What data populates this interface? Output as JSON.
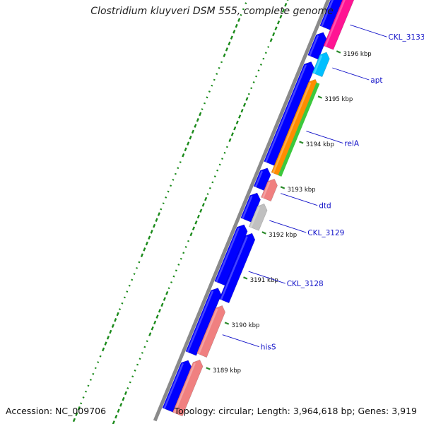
{
  "title": "Clostridium kluyveri DSM 555, complete genome",
  "accession_text": "Accession: NC_009706",
  "summary_text": "Topology: circular; Length: 3,964,618 bp; Genes: 3,919",
  "colors": {
    "outer_strand": "#0000ff",
    "inner_strand": "#0000ff",
    "backbone": "#8a8a8a",
    "gc_dots": "#1a8a1a",
    "label_line": "#1010c8",
    "tick": "#2a8a2a"
  },
  "scale": {
    "unit": "kbp",
    "ticks": [
      {
        "value": 3189,
        "label": "3189 kbp"
      },
      {
        "value": 3190,
        "label": "3190 kbp"
      },
      {
        "value": 3191,
        "label": "3191 kbp"
      },
      {
        "value": 3192,
        "label": "3192 kbp"
      },
      {
        "value": 3193,
        "label": "3193 kbp"
      },
      {
        "value": 3194,
        "label": "3194 kbp"
      },
      {
        "value": 3195,
        "label": "3195 kbp"
      },
      {
        "value": 3196,
        "label": "3196 kbp"
      }
    ]
  },
  "genes": {
    "outer": [
      {
        "start": 3187.9,
        "end": 3189.0
      },
      {
        "start": 3189.15,
        "end": 3190.6
      },
      {
        "start": 3190.7,
        "end": 3192.0
      },
      {
        "start": 3192.1,
        "end": 3192.7
      },
      {
        "start": 3192.8,
        "end": 3193.25
      },
      {
        "start": 3193.35,
        "end": 3195.6
      },
      {
        "start": 3195.7,
        "end": 3196.25
      },
      {
        "start": 3196.35,
        "end": 3197.2
      }
    ],
    "inner": [
      {
        "start": 3187.9,
        "end": 3189.1,
        "name": "",
        "color": "#f08080"
      },
      {
        "start": 3189.2,
        "end": 3190.3,
        "name": "hisS",
        "color": "#f08080"
      },
      {
        "start": 3190.4,
        "end": 3191.9,
        "name": "CKL_3128",
        "color": "#0000ff"
      },
      {
        "start": 3192.0,
        "end": 3192.55,
        "name": "CKL_3129",
        "color": "#c0c0c0"
      },
      {
        "start": 3192.65,
        "end": 3193.1,
        "name": "dtd",
        "color": "#f08080"
      },
      {
        "start": 3193.2,
        "end": 3195.3,
        "name": "relA",
        "color": "#ff8c00",
        "stripe": "#3cc83c"
      },
      {
        "start": 3195.4,
        "end": 3195.9,
        "name": "apt",
        "color": "#00bfff"
      },
      {
        "start": 3196.0,
        "end": 3197.2,
        "name": "CKL_3133",
        "color": "#ff1493"
      }
    ]
  }
}
